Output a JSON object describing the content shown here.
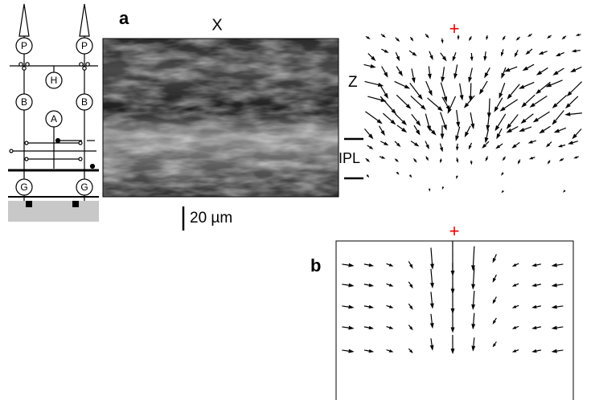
{
  "schematic": {
    "cells": [
      "P",
      "P",
      "H",
      "B",
      "B",
      "A",
      "G",
      "G"
    ]
  },
  "panel_a": {
    "label": "a",
    "x_axis": "X",
    "z_axis": "Z",
    "layer": "IPL",
    "scale_bar": "20 µm",
    "marker": "+"
  },
  "panel_b": {
    "label": "b",
    "marker": "+"
  }
}
